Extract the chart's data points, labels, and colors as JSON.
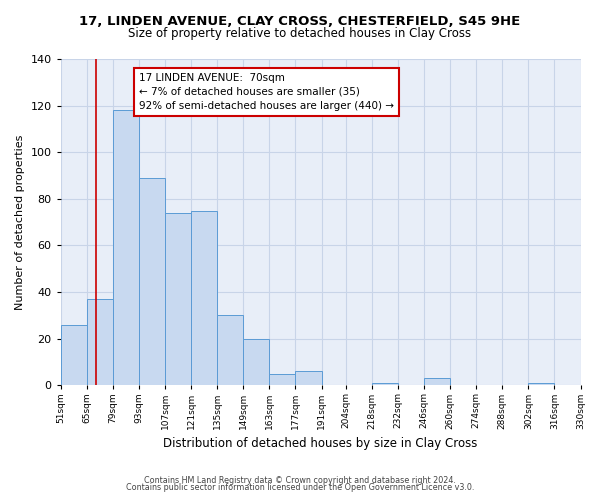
{
  "title_line1": "17, LINDEN AVENUE, CLAY CROSS, CHESTERFIELD, S45 9HE",
  "title_line2": "Size of property relative to detached houses in Clay Cross",
  "xlabel": "Distribution of detached houses by size in Clay Cross",
  "ylabel": "Number of detached properties",
  "bin_edges": [
    51,
    65,
    79,
    93,
    107,
    121,
    135,
    149,
    163,
    177,
    191,
    204,
    218,
    232,
    246,
    260,
    274,
    288,
    302,
    316,
    330
  ],
  "bin_heights": [
    26,
    37,
    118,
    89,
    74,
    75,
    30,
    20,
    5,
    6,
    0,
    0,
    1,
    0,
    3,
    0,
    0,
    0,
    1,
    0
  ],
  "bar_color": "#c8d9f0",
  "bar_edge_color": "#5b9bd5",
  "grid_color": "#c8d4e8",
  "plot_bg_color": "#e8eef8",
  "fig_bg_color": "#ffffff",
  "red_line_x": 70,
  "annotation_text": "17 LINDEN AVENUE:  70sqm\n← 7% of detached houses are smaller (35)\n92% of semi-detached houses are larger (440) →",
  "annotation_box_color": "white",
  "annotation_box_edge": "#cc0000",
  "ylim": [
    0,
    140
  ],
  "yticks": [
    0,
    20,
    40,
    60,
    80,
    100,
    120,
    140
  ],
  "tick_labels": [
    "51sqm",
    "65sqm",
    "79sqm",
    "93sqm",
    "107sqm",
    "121sqm",
    "135sqm",
    "149sqm",
    "163sqm",
    "177sqm",
    "191sqm",
    "204sqm",
    "218sqm",
    "232sqm",
    "246sqm",
    "260sqm",
    "274sqm",
    "288sqm",
    "302sqm",
    "316sqm",
    "330sqm"
  ],
  "footer_line1": "Contains HM Land Registry data © Crown copyright and database right 2024.",
  "footer_line2": "Contains public sector information licensed under the Open Government Licence v3.0."
}
